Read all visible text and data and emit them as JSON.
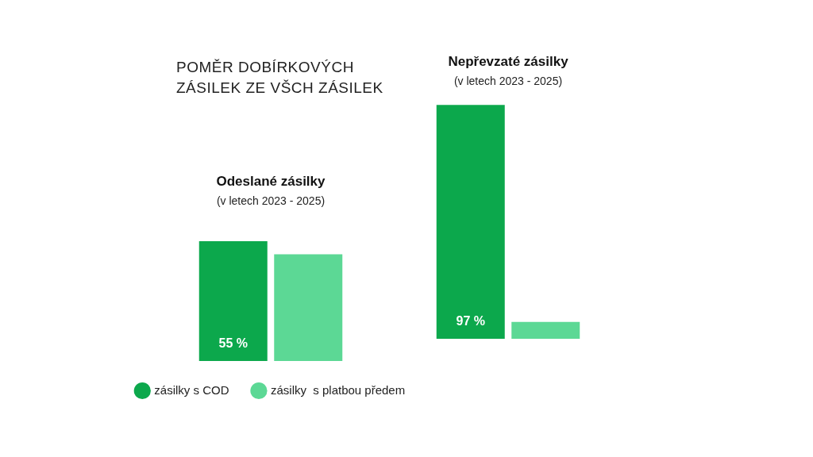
{
  "chart_data": [
    {
      "type": "other",
      "title": "POMĚR DOBÍRKOVÝCH\nZÁSILEK ZE VŠCH ZÁSILEK"
    },
    {
      "type": "bar",
      "title": "Odeslané zásilky",
      "subtitle": "(v letech 2023 - 2025)",
      "categories": [
        null
      ],
      "grid": false,
      "tick_labels": false,
      "legend": "bottom",
      "series": [
        {
          "name": "zásilky s COD",
          "color": "#0ca84c",
          "values": [
            55
          ],
          "value_labels": [
            "55 %"
          ]
        },
        {
          "name": "zásilky  s platbou předem",
          "color": "#5cd895",
          "values": [
            49
          ],
          "value_labels": [
            null
          ]
        }
      ]
    },
    {
      "type": "bar",
      "title": "Nepřevzaté zásilky",
      "subtitle": "(v letech 2023 - 2025)",
      "categories": [
        null
      ],
      "grid": false,
      "tick_labels": false,
      "series": [
        {
          "color": "#0ca84c",
          "values": [
            97
          ],
          "value_labels": [
            "97 %"
          ]
        },
        {
          "color": "#5cd895",
          "values": [
            7
          ],
          "value_labels": [
            null
          ]
        }
      ]
    }
  ]
}
